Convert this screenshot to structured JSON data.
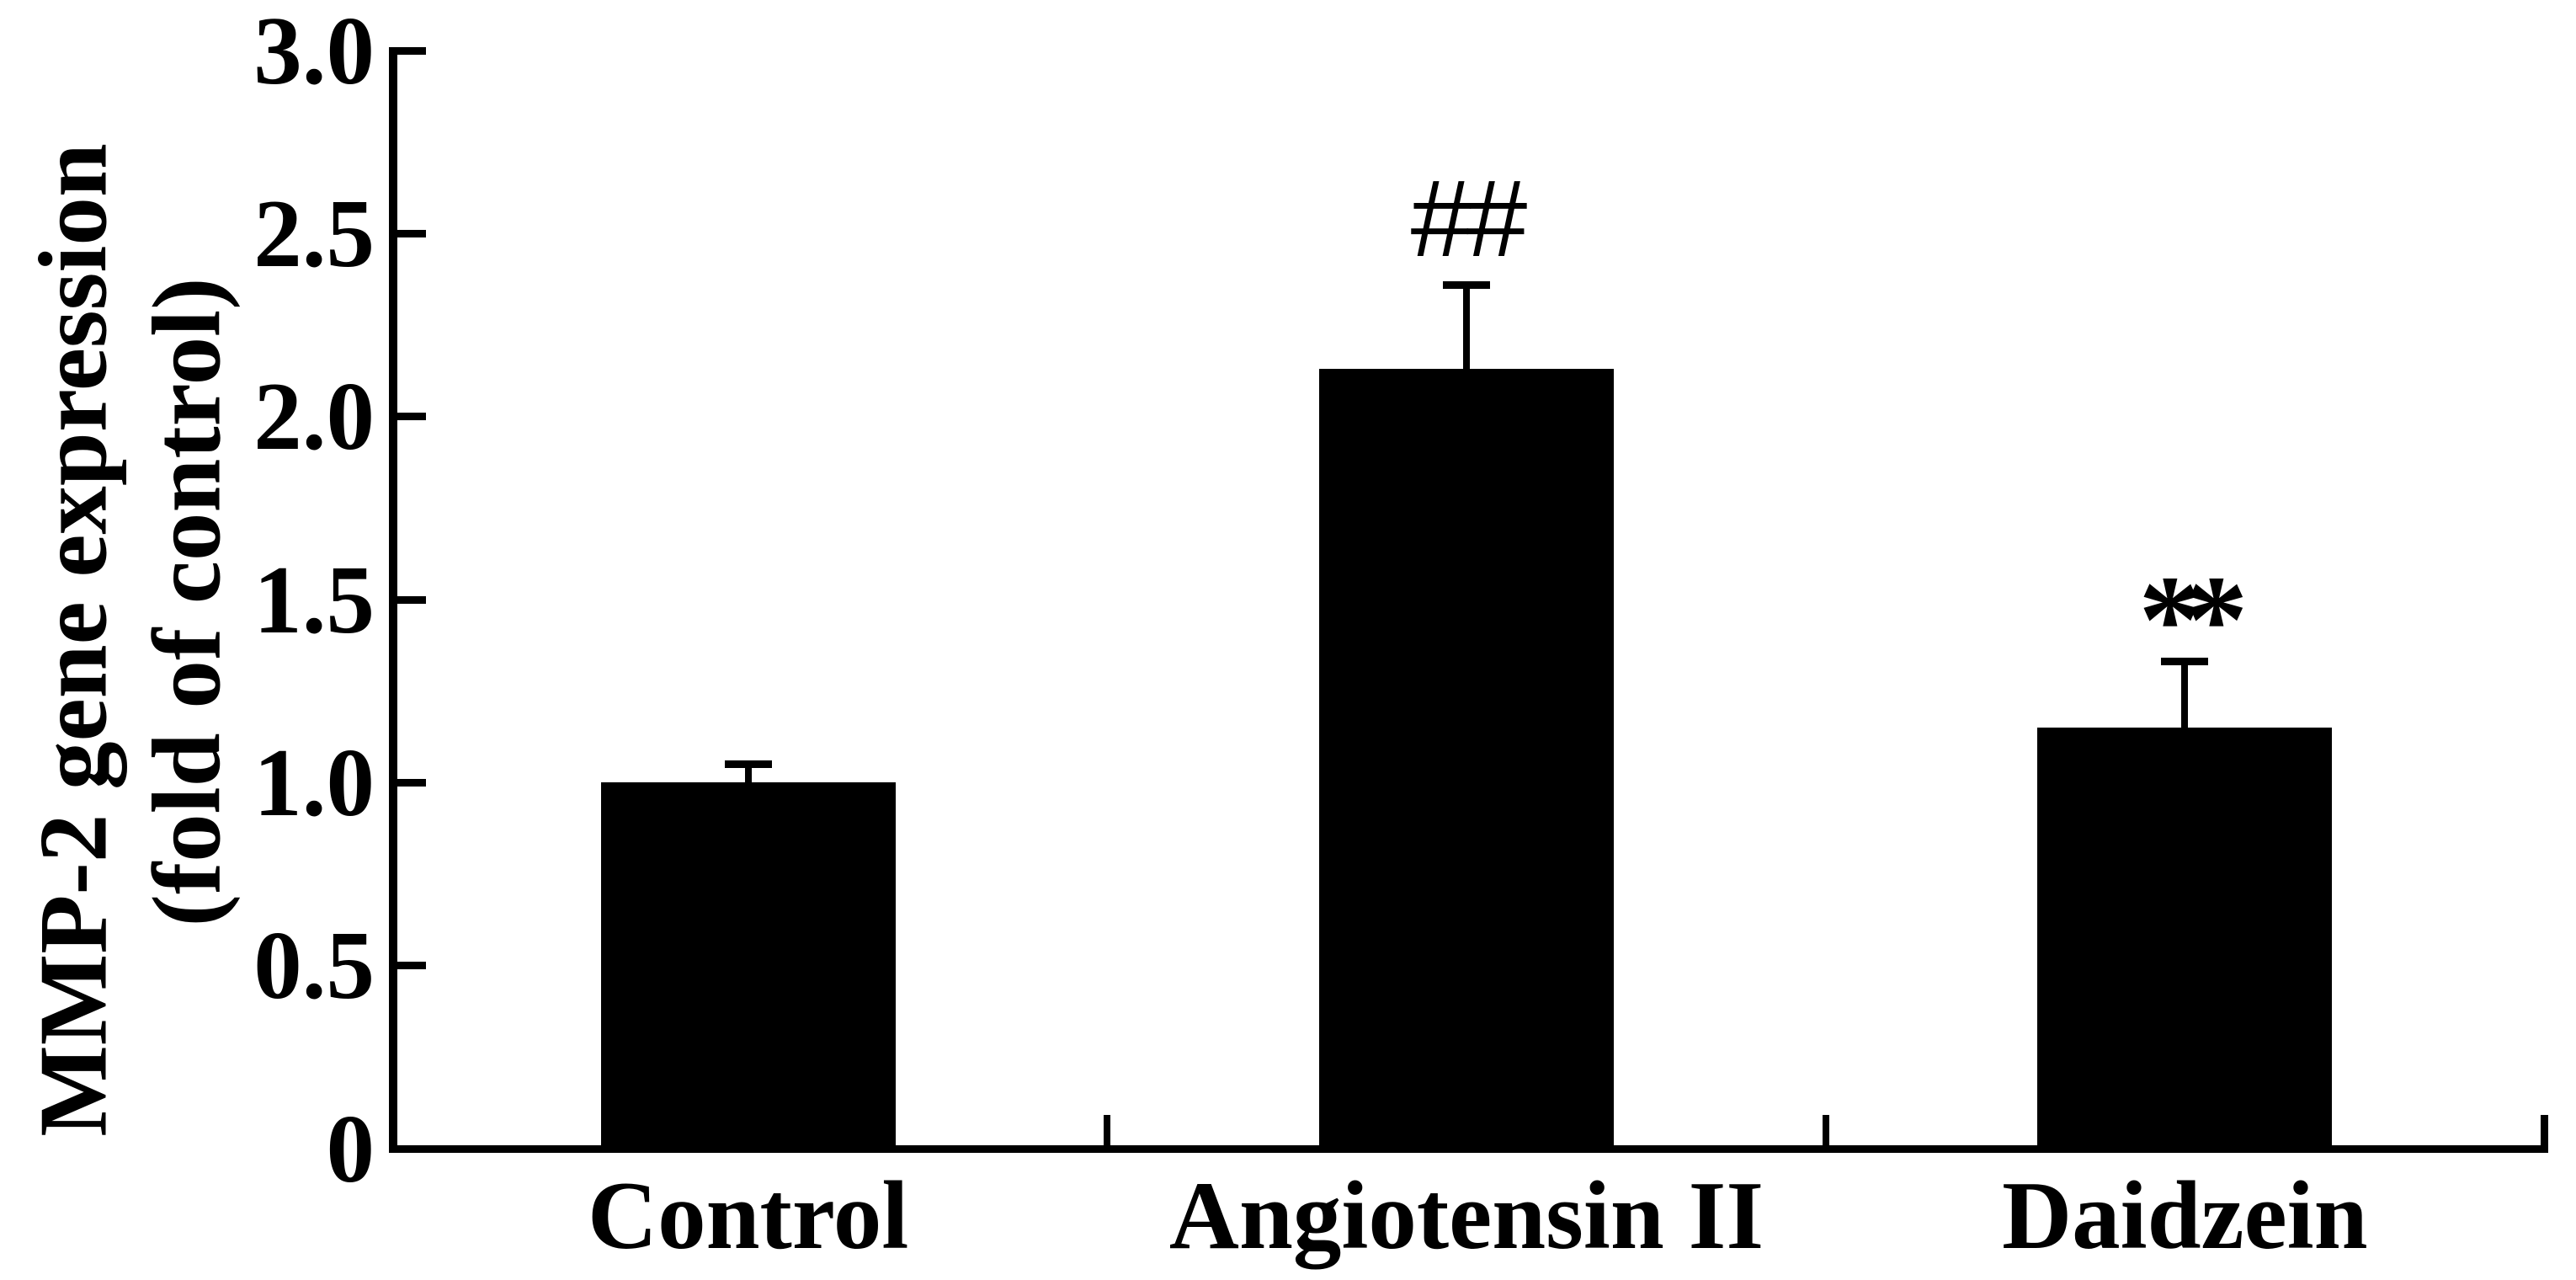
{
  "figure": {
    "background_color": "#ffffff",
    "ink_color": "#000000"
  },
  "chart_data": {
    "type": "bar",
    "title": "",
    "xlabel": "",
    "ylabel_line1": "MMP-2 gene expression",
    "ylabel_line2": "(fold of control)",
    "categories": [
      "Control",
      "Angiotensin II",
      "Daidzein"
    ],
    "values": [
      1.0,
      2.13,
      1.15
    ],
    "errors": [
      0.05,
      0.23,
      0.18
    ],
    "error_bar_style": "upper cap only",
    "annotations": [
      "",
      "##",
      "**"
    ],
    "bar_color": "#000000",
    "ylim": [
      0,
      3.0
    ],
    "yticks": [
      {
        "value": 3.0,
        "label": "3.0"
      },
      {
        "value": 2.5,
        "label": "2.5"
      },
      {
        "value": 2.0,
        "label": "2.0"
      },
      {
        "value": 1.5,
        "label": "1.5"
      },
      {
        "value": 1.0,
        "label": "1.0"
      },
      {
        "value": 0.5,
        "label": "0.5"
      },
      {
        "value": 0.0,
        "label": "0"
      }
    ],
    "grid": false,
    "legend": null
  }
}
